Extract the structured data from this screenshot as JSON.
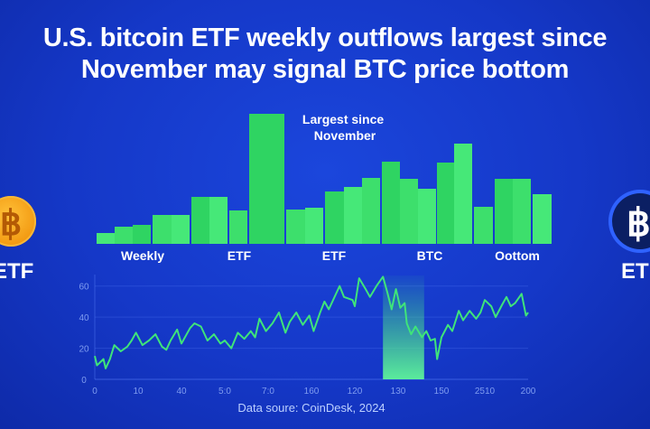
{
  "title": {
    "line1": "U.S. bitcoin ETF weekly outflows largest since",
    "line2": "November may signal BTC price bottom"
  },
  "logos": {
    "left": {
      "icon": "bitcoin-coin-icon",
      "label": "ETF"
    },
    "right": {
      "icon": "bitcoin-coin-icon",
      "label": "ETF"
    }
  },
  "colors": {
    "background": "#1538c8",
    "bars": "#3fe46f",
    "line": "#3fe47a",
    "text": "#ffffff"
  },
  "source": "Data soure: CoinDesk, 2024",
  "chart_data": [
    {
      "type": "bar",
      "annotation": "Largest since November",
      "values": [
        12,
        19,
        21,
        32,
        32,
        52,
        52,
        37,
        144,
        38,
        40,
        58,
        63,
        73,
        91,
        72,
        61,
        90,
        111,
        41,
        72,
        72,
        55
      ],
      "category_labels": [
        "Weekly",
        "ETF",
        "ETF",
        "BTC",
        "Oottom"
      ],
      "grid": false
    },
    {
      "type": "line",
      "yticks": [
        "0",
        "20",
        "40",
        "60"
      ],
      "xticks": [
        "0",
        "10",
        "40",
        "5:0",
        "7:0",
        "160",
        "120",
        "130",
        "150",
        "2510",
        "200"
      ],
      "xlim": [
        0,
        200
      ],
      "ylim": [
        0,
        66
      ],
      "grid": true,
      "highlight_range": [
        133,
        152
      ],
      "points": [
        [
          0,
          15
        ],
        [
          1,
          9
        ],
        [
          4,
          13
        ],
        [
          5,
          7
        ],
        [
          7,
          13
        ],
        [
          9,
          22
        ],
        [
          12,
          18
        ],
        [
          15,
          21
        ],
        [
          17,
          25
        ],
        [
          19,
          30
        ],
        [
          22,
          22
        ],
        [
          25,
          25
        ],
        [
          28,
          29
        ],
        [
          31,
          21
        ],
        [
          33,
          19
        ],
        [
          35,
          25
        ],
        [
          38,
          32
        ],
        [
          40,
          23
        ],
        [
          44,
          33
        ],
        [
          46,
          36
        ],
        [
          49,
          34
        ],
        [
          52,
          25
        ],
        [
          55,
          29
        ],
        [
          58,
          23
        ],
        [
          60,
          25
        ],
        [
          63,
          20
        ],
        [
          66,
          30
        ],
        [
          69,
          26
        ],
        [
          72,
          31
        ],
        [
          74,
          27
        ],
        [
          76,
          39
        ],
        [
          79,
          31
        ],
        [
          82,
          36
        ],
        [
          85,
          43
        ],
        [
          88,
          30
        ],
        [
          90,
          37
        ],
        [
          93,
          43
        ],
        [
          96,
          35
        ],
        [
          99,
          41
        ],
        [
          101,
          31
        ],
        [
          104,
          43
        ],
        [
          106,
          50
        ],
        [
          108,
          45
        ],
        [
          113,
          60
        ],
        [
          115,
          53
        ],
        [
          119,
          51
        ],
        [
          120,
          47
        ],
        [
          122,
          65
        ],
        [
          125,
          58
        ],
        [
          127,
          53
        ],
        [
          130,
          60
        ],
        [
          133,
          66
        ],
        [
          135,
          56
        ],
        [
          137,
          45
        ],
        [
          139,
          58
        ],
        [
          141,
          46
        ],
        [
          143,
          49
        ],
        [
          144,
          36
        ],
        [
          146,
          29
        ],
        [
          148,
          34
        ],
        [
          151,
          27
        ],
        [
          153,
          31
        ],
        [
          155,
          25
        ],
        [
          157,
          26
        ],
        [
          158,
          13
        ],
        [
          160,
          27
        ],
        [
          163,
          35
        ],
        [
          165,
          31
        ],
        [
          168,
          44
        ],
        [
          170,
          38
        ],
        [
          173,
          44
        ],
        [
          176,
          39
        ],
        [
          178,
          43
        ],
        [
          180,
          51
        ],
        [
          183,
          47
        ],
        [
          185,
          40
        ],
        [
          188,
          48
        ],
        [
          190,
          53
        ],
        [
          192,
          47
        ],
        [
          194,
          49
        ],
        [
          197,
          55
        ],
        [
          199,
          41
        ],
        [
          200,
          43
        ]
      ]
    }
  ]
}
